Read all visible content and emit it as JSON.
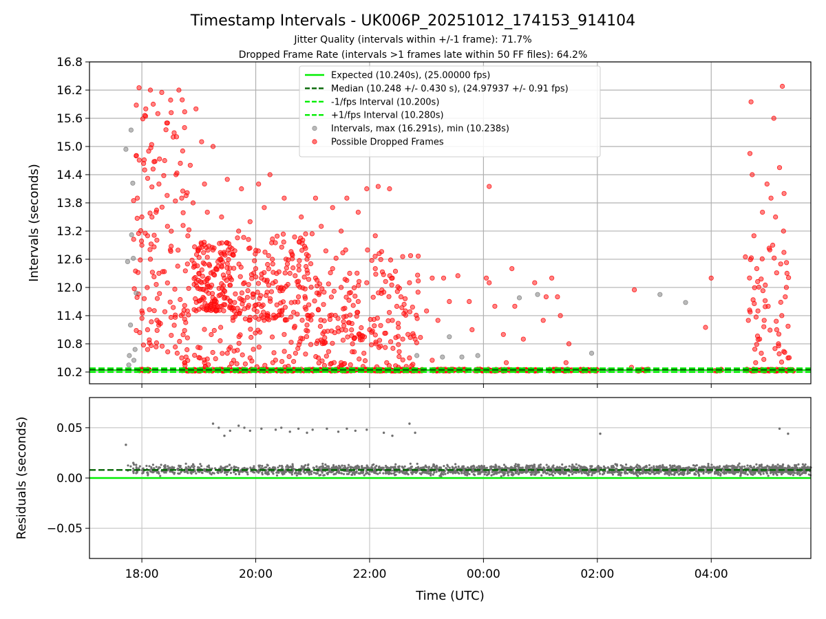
{
  "chart_data": [
    {
      "type": "scatter",
      "title": "Timestamp Intervals - UK006P_20251012_174153_914104",
      "subtitle_lines": [
        "Jitter Quality (intervals within +/-1 frame): 71.7%",
        "Dropped Frame Rate (intervals >1 frames late within 50 FF files): 64.2%"
      ],
      "xlabel": "",
      "ylabel": "Intervals (seconds)",
      "x_axis": {
        "type": "time",
        "min_hours": 17.08,
        "max_hours": 29.75
      },
      "ylim": [
        9.95,
        16.8
      ],
      "y_ticks": [
        10.2,
        10.8,
        11.4,
        12.0,
        12.6,
        13.2,
        13.8,
        14.4,
        15.0,
        15.6,
        16.2,
        16.8
      ],
      "y_tick_labels": [
        "10.2",
        "10.8",
        "11.4",
        "12.0",
        "12.6",
        "13.2",
        "13.8",
        "14.4",
        "15.0",
        "15.6",
        "16.2",
        "16.8"
      ],
      "x_ticks_hours": [
        18,
        20,
        22,
        24,
        26,
        28
      ],
      "grid": true,
      "legend_position": "top-center",
      "legend": [
        {
          "label": "Expected (10.240s), (25.00000 fps)",
          "style": "line",
          "color": "#00ee00"
        },
        {
          "label": "Median (10.248 +/- 0.430 s), (24.97937 +/- 0.91 fps)",
          "style": "dashed",
          "color": "#006400"
        },
        {
          "label": "-1/fps Interval (10.200s)",
          "style": "dashed",
          "color": "#00ee00"
        },
        {
          "label": "+1/fps Interval (10.280s)",
          "style": "dashed",
          "color": "#00ee00"
        },
        {
          "label": "Intervals, max (16.291s), min (10.238s)",
          "style": "dot",
          "color": "#909090"
        },
        {
          "label": "Possible Dropped Frames",
          "style": "dot",
          "color": "#ff2020"
        }
      ],
      "reference_lines": {
        "expected": 10.24,
        "median": 10.248,
        "minus_fps": 10.2,
        "plus_fps": 10.28
      },
      "gray_points": [
        [
          17.72,
          14.94
        ],
        [
          17.75,
          12.55
        ],
        [
          17.8,
          11.2
        ],
        [
          17.82,
          13.12
        ],
        [
          17.78,
          10.55
        ],
        [
          17.85,
          12.62
        ],
        [
          17.88,
          10.68
        ],
        [
          17.81,
          15.35
        ],
        [
          17.84,
          14.22
        ],
        [
          17.9,
          11.88
        ],
        [
          17.77,
          10.35
        ],
        [
          17.86,
          10.45
        ],
        [
          23.4,
          10.95
        ],
        [
          23.62,
          10.52
        ],
        [
          23.9,
          10.55
        ],
        [
          22.83,
          10.55
        ],
        [
          24.63,
          11.78
        ],
        [
          25.9,
          10.6
        ],
        [
          27.1,
          11.85
        ],
        [
          27.55,
          11.68
        ],
        [
          24.95,
          11.85
        ],
        [
          23.28,
          10.52
        ],
        [
          26.2,
          10.24
        ],
        [
          27.5,
          10.24
        ]
      ],
      "red_points": [
        [
          17.95,
          16.25
        ],
        [
          18.15,
          16.2
        ],
        [
          18.2,
          15.9
        ],
        [
          18.35,
          16.15
        ],
        [
          18.65,
          16.2
        ],
        [
          18.28,
          15.7
        ],
        [
          18.45,
          15.5
        ],
        [
          18.55,
          15.2
        ],
        [
          18.75,
          15.4
        ],
        [
          18.95,
          15.8
        ],
        [
          19.05,
          15.1
        ],
        [
          19.25,
          15.0
        ],
        [
          17.9,
          14.8
        ],
        [
          18.05,
          14.5
        ],
        [
          18.12,
          14.9
        ],
        [
          18.3,
          14.2
        ],
        [
          18.4,
          14.7
        ],
        [
          18.6,
          14.4
        ],
        [
          18.85,
          14.6
        ],
        [
          19.1,
          14.2
        ],
        [
          19.5,
          14.3
        ],
        [
          19.75,
          14.1
        ],
        [
          20.05,
          14.2
        ],
        [
          20.25,
          14.4
        ],
        [
          21.05,
          13.9
        ],
        [
          21.35,
          13.7
        ],
        [
          21.6,
          13.9
        ],
        [
          21.95,
          14.1
        ],
        [
          22.15,
          14.15
        ],
        [
          22.35,
          14.1
        ],
        [
          17.92,
          13.9
        ],
        [
          18.0,
          13.5
        ],
        [
          18.1,
          13.1
        ],
        [
          18.25,
          13.6
        ],
        [
          18.45,
          13.3
        ],
        [
          18.7,
          13.9
        ],
        [
          18.9,
          13.8
        ],
        [
          19.15,
          13.6
        ],
        [
          19.4,
          13.5
        ],
        [
          19.7,
          13.2
        ],
        [
          19.9,
          13.4
        ],
        [
          20.15,
          13.7
        ],
        [
          20.5,
          13.9
        ],
        [
          20.8,
          13.5
        ],
        [
          21.15,
          13.3
        ],
        [
          21.5,
          13.2
        ],
        [
          21.8,
          13.6
        ],
        [
          22.1,
          13.1
        ],
        [
          18.0,
          12.9
        ],
        [
          18.15,
          12.6
        ],
        [
          18.3,
          12.3
        ],
        [
          18.5,
          12.8
        ],
        [
          18.8,
          12.5
        ],
        [
          19.0,
          12.3
        ],
        [
          19.05,
          12.1
        ],
        [
          19.1,
          12.5
        ],
        [
          19.2,
          12.0
        ],
        [
          19.3,
          12.4
        ],
        [
          19.45,
          12.2
        ],
        [
          19.6,
          12.7
        ],
        [
          19.8,
          12.1
        ],
        [
          20.0,
          12.4
        ],
        [
          20.1,
          12.2
        ],
        [
          20.2,
          11.9
        ],
        [
          20.3,
          12.5
        ],
        [
          20.45,
          12.0
        ],
        [
          20.6,
          12.3
        ],
        [
          20.75,
          11.8
        ],
        [
          20.9,
          12.6
        ],
        [
          21.05,
          12.2
        ],
        [
          21.2,
          11.9
        ],
        [
          21.35,
          12.4
        ],
        [
          21.5,
          12.0
        ],
        [
          21.65,
          12.3
        ],
        [
          21.8,
          11.7
        ],
        [
          21.95,
          12.1
        ],
        [
          22.1,
          12.4
        ],
        [
          22.25,
          11.9
        ],
        [
          22.4,
          12.2
        ],
        [
          22.55,
          11.8
        ],
        [
          22.7,
          12.1
        ],
        [
          22.85,
          11.9
        ],
        [
          23.1,
          12.2
        ],
        [
          23.3,
          12.2
        ],
        [
          23.55,
          12.25
        ],
        [
          24.1,
          12.1
        ],
        [
          24.05,
          12.2
        ],
        [
          24.5,
          12.4
        ],
        [
          24.9,
          12.1
        ],
        [
          25.2,
          12.2
        ],
        [
          23.0,
          11.5
        ],
        [
          23.4,
          11.7
        ],
        [
          23.75,
          11.7
        ],
        [
          24.2,
          11.6
        ],
        [
          24.55,
          11.6
        ],
        [
          25.1,
          11.8
        ],
        [
          25.3,
          11.8
        ],
        [
          25.05,
          11.3
        ],
        [
          25.35,
          11.4
        ],
        [
          18.0,
          11.5
        ],
        [
          18.1,
          11.1
        ],
        [
          18.8,
          11.5
        ],
        [
          19.3,
          11.5
        ],
        [
          19.6,
          11.3
        ],
        [
          20.1,
          11.4
        ],
        [
          20.5,
          11.0
        ],
        [
          20.9,
          11.2
        ],
        [
          21.3,
          11.4
        ],
        [
          21.7,
          10.8
        ],
        [
          22.0,
          11.1
        ],
        [
          22.4,
          11.3
        ],
        [
          22.8,
          10.9
        ],
        [
          23.2,
          11.3
        ],
        [
          23.8,
          11.1
        ],
        [
          24.35,
          11.0
        ],
        [
          24.7,
          10.9
        ],
        [
          25.5,
          10.8
        ],
        [
          18.7,
          10.5
        ],
        [
          19.1,
          10.4
        ],
        [
          19.5,
          10.6
        ],
        [
          19.9,
          10.5
        ],
        [
          20.3,
          10.4
        ],
        [
          20.7,
          10.6
        ],
        [
          21.1,
          10.5
        ],
        [
          21.5,
          10.4
        ],
        [
          21.9,
          10.6
        ],
        [
          22.3,
          10.4
        ],
        [
          22.7,
          10.5
        ],
        [
          23.1,
          10.45
        ],
        [
          24.4,
          10.4
        ],
        [
          25.45,
          10.4
        ],
        [
          26.6,
          10.3
        ],
        [
          26.65,
          11.95
        ],
        [
          24.1,
          14.15
        ],
        [
          28.0,
          12.2
        ],
        [
          27.9,
          11.15
        ],
        [
          28.6,
          12.65
        ],
        [
          28.68,
          14.85
        ],
        [
          28.7,
          15.95
        ],
        [
          28.72,
          14.4
        ],
        [
          28.75,
          13.1
        ],
        [
          28.8,
          12.4
        ],
        [
          28.82,
          11.5
        ],
        [
          28.85,
          10.9
        ],
        [
          28.9,
          13.6
        ],
        [
          28.95,
          12.05
        ],
        [
          28.98,
          14.2
        ],
        [
          29.0,
          11.6
        ],
        [
          29.05,
          13.9
        ],
        [
          29.08,
          12.9
        ],
        [
          29.1,
          15.6
        ],
        [
          29.12,
          10.7
        ],
        [
          29.15,
          11.1
        ],
        [
          29.2,
          14.55
        ],
        [
          29.22,
          12.5
        ],
        [
          29.25,
          16.28
        ],
        [
          29.27,
          13.2
        ],
        [
          29.3,
          11.8
        ],
        [
          29.32,
          12.0
        ],
        [
          29.35,
          10.5
        ],
        [
          28.88,
          10.6
        ],
        [
          29.18,
          10.8
        ],
        [
          28.78,
          10.4
        ],
        [
          29.28,
          14.0
        ],
        [
          29.03,
          12.8
        ],
        [
          28.93,
          11.3
        ],
        [
          29.13,
          13.5
        ],
        [
          29.24,
          11.4
        ],
        [
          29.33,
          12.3
        ]
      ],
      "red_baseline_clusters": [
        [
          17.95,
          18.15
        ],
        [
          18.7,
          22.95
        ],
        [
          23.1,
          23.7
        ],
        [
          23.85,
          24.5
        ],
        [
          24.55,
          25.0
        ],
        [
          25.15,
          25.55
        ],
        [
          25.7,
          26.0
        ],
        [
          26.7,
          26.9
        ],
        [
          28.05,
          28.2
        ],
        [
          28.6,
          29.45
        ]
      ]
    },
    {
      "type": "scatter",
      "xlabel": "Time (UTC)",
      "ylabel": "Residuals (seconds)",
      "ylim": [
        -0.08,
        0.08
      ],
      "y_ticks": [
        -0.05,
        0.0,
        0.05
      ],
      "y_tick_labels": [
        "−0.05",
        "0.00",
        "0.05"
      ],
      "x_tick_labels": [
        "18:00",
        "20:00",
        "22:00",
        "00:00",
        "02:00",
        "04:00"
      ],
      "grid": true,
      "reference_lines": {
        "zero": 0.0,
        "median": 0.008
      },
      "outlier_points": [
        [
          17.72,
          0.033
        ],
        [
          17.85,
          0.015
        ],
        [
          17.9,
          0.013
        ],
        [
          19.25,
          0.054
        ],
        [
          19.35,
          0.05
        ],
        [
          19.45,
          0.042
        ],
        [
          19.55,
          0.047
        ],
        [
          19.7,
          0.052
        ],
        [
          19.8,
          0.05
        ],
        [
          19.9,
          0.047
        ],
        [
          20.1,
          0.049
        ],
        [
          20.35,
          0.048
        ],
        [
          20.45,
          0.05
        ],
        [
          20.6,
          0.046
        ],
        [
          20.75,
          0.049
        ],
        [
          20.9,
          0.045
        ],
        [
          21.0,
          0.048
        ],
        [
          21.25,
          0.049
        ],
        [
          21.45,
          0.046
        ],
        [
          21.6,
          0.049
        ],
        [
          21.75,
          0.047
        ],
        [
          21.95,
          0.048
        ],
        [
          22.25,
          0.045
        ],
        [
          22.4,
          0.042
        ],
        [
          22.7,
          0.054
        ],
        [
          22.8,
          0.045
        ],
        [
          26.05,
          0.044
        ],
        [
          29.2,
          0.049
        ],
        [
          29.35,
          0.044
        ]
      ],
      "band": {
        "x_start": 17.7,
        "x_end": 29.75,
        "center": 0.008,
        "spread": 0.007
      }
    }
  ]
}
